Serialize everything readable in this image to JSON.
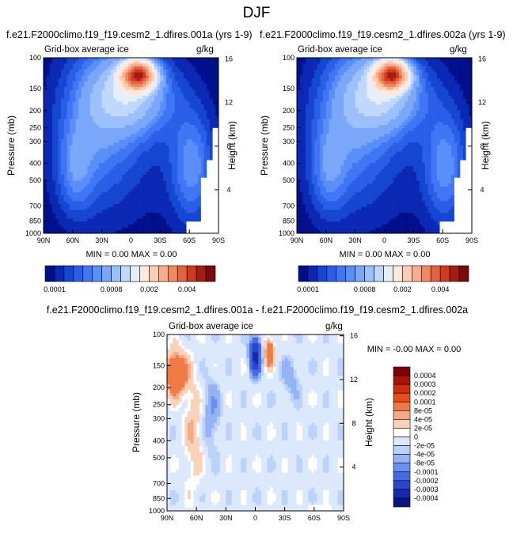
{
  "figure": {
    "main_title": "DJF"
  },
  "chart_data": [
    {
      "type": "heatmap",
      "panel": "top-left",
      "case_title": "f.e21.F2000climo.f19_f19.cesm2_1.dfires.001a (yrs 1-9)",
      "variable_label": "Grid-box average ice",
      "units_label": "g/kg",
      "xlabel": "",
      "ylabel": "Pressure (mb)",
      "y2label": "Height (km)",
      "x_ticks": [
        "90N",
        "60N",
        "30N",
        "0",
        "30S",
        "60S",
        "90S"
      ],
      "y_ticks": [
        "100",
        "150",
        "200",
        "250",
        "300",
        "400",
        "500",
        "700",
        "850",
        "1000"
      ],
      "y2_ticks": [
        "16",
        "12",
        "8",
        "4"
      ],
      "stats_text": "MIN =  0.00  MAX =  0.00",
      "colorbar_ticks": [
        "0.0001",
        "0.0008",
        "0.002",
        "0.004"
      ],
      "levels": [
        0.0001,
        0.0002,
        0.0003,
        0.0004,
        0.0005,
        0.0006,
        0.0008,
        0.001,
        0.0012,
        0.0015,
        0.002,
        0.0025,
        0.003,
        0.0035,
        0.004,
        0.0045,
        0.005
      ]
    },
    {
      "type": "heatmap",
      "panel": "top-right",
      "case_title": "f.e21.F2000climo.f19_f19.cesm2_1.dfires.002a (yrs 1-9)",
      "variable_label": "Grid-box average ice",
      "units_label": "g/kg",
      "xlabel": "",
      "ylabel": "Pressure (mb)",
      "y2label": "Height (km)",
      "x_ticks": [
        "90N",
        "60N",
        "30N",
        "0",
        "30S",
        "60S",
        "90S"
      ],
      "y_ticks": [
        "100",
        "150",
        "200",
        "250",
        "300",
        "400",
        "500",
        "700",
        "850",
        "1000"
      ],
      "y2_ticks": [
        "16",
        "12",
        "8",
        "4"
      ],
      "stats_text": "MIN =  0.00  MAX =  0.00",
      "colorbar_ticks": [
        "0.0001",
        "0.0008",
        "0.002",
        "0.004"
      ],
      "levels": [
        0.0001,
        0.0002,
        0.0003,
        0.0004,
        0.0005,
        0.0006,
        0.0008,
        0.001,
        0.0012,
        0.0015,
        0.002,
        0.0025,
        0.003,
        0.0035,
        0.004,
        0.0045,
        0.005
      ]
    },
    {
      "type": "heatmap",
      "panel": "bottom-difference",
      "case_title": "f.e21.F2000climo.f19_f19.cesm2_1.dfires.001a - f.e21.F2000climo.f19_f19.cesm2_1.dfires.002a",
      "variable_label": "Grid-box average ice",
      "units_label": "g/kg",
      "xlabel": "",
      "ylabel": "Pressure (mb)",
      "y2label": "Height (km)",
      "x_ticks": [
        "90N",
        "60N",
        "30N",
        "0",
        "30S",
        "60S",
        "90S"
      ],
      "y_ticks": [
        "100",
        "150",
        "200",
        "250",
        "300",
        "400",
        "500",
        "700",
        "850",
        "1000"
      ],
      "y2_ticks": [
        "16",
        "12",
        "8",
        "4"
      ],
      "stats_text": "MIN = -0.00  MAX =  0.00",
      "colorbar_ticks": [
        "0.0004",
        "0.0003",
        "0.0002",
        "0.0001",
        "8e-05",
        "4e-05",
        "2e-05",
        "0",
        "-2e-05",
        "-4e-05",
        "-8e-05",
        "-0.0001",
        "-0.0002",
        "-0.0003",
        "-0.0004"
      ]
    }
  ],
  "colors": {
    "seq_palette": [
      "#000f8c",
      "#0a28b4",
      "#1446d2",
      "#2a5ee8",
      "#3f76f5",
      "#5a8ef8",
      "#7aa7fa",
      "#9cc0fb",
      "#bfd8fc",
      "#e4eefc",
      "#fde9dd",
      "#fbcdb4",
      "#f8ad8c",
      "#f18862",
      "#e4623e",
      "#cf3b20",
      "#a51c10",
      "#7c0808"
    ],
    "diff_palette": [
      "#7c0000",
      "#a81404",
      "#cc2d0a",
      "#e44d1c",
      "#f07a46",
      "#f6a882",
      "#fad1b9",
      "#ffffff",
      "#dce8fb",
      "#bcd2fa",
      "#94b3f6",
      "#6b8ff0",
      "#4769e4",
      "#2a46cc",
      "#1629a8",
      "#0a1486"
    ]
  }
}
